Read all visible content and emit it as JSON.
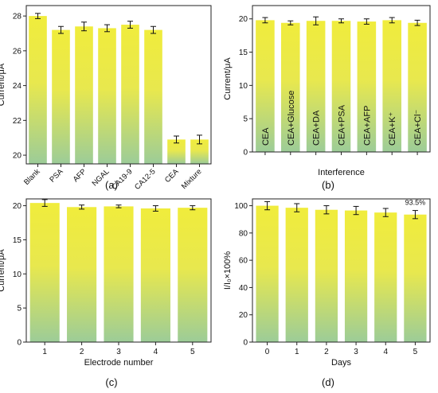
{
  "colors": {
    "bar_top": "#f0ec3c",
    "bar_bottom": "#9ccc98",
    "axis": "#222222",
    "error": "#111111"
  },
  "panel_labels": [
    "(a)",
    "(b)",
    "(c)",
    "(d)"
  ],
  "chart_data": [
    {
      "panel": "(a)",
      "type": "bar",
      "xlabel": "",
      "ylabel": "Current/μA",
      "ylim": [
        19.5,
        28.6
      ],
      "yticks": [
        20,
        22,
        24,
        26,
        28
      ],
      "categories": [
        "Blank",
        "PSA",
        "AFP",
        "NGAL",
        "CA19-9",
        "CA12-5",
        "CEA",
        "Mixture"
      ],
      "values": [
        28.0,
        27.2,
        27.4,
        27.3,
        27.5,
        27.2,
        20.9,
        20.9
      ],
      "errors": [
        0.15,
        0.2,
        0.25,
        0.2,
        0.2,
        0.2,
        0.2,
        0.25
      ],
      "tick_rotation": -45
    },
    {
      "panel": "(b)",
      "type": "bar",
      "xlabel": "Interference",
      "ylabel": "Current/μA",
      "ylim": [
        0,
        22
      ],
      "yticks": [
        0,
        5,
        10,
        15,
        20
      ],
      "categories": [
        "CEA",
        "CEA+Glucose",
        "CEA+DA",
        "CEA+PSA",
        "CEA+AFP",
        "CEA+K⁺",
        "CEA+Cl⁻"
      ],
      "values": [
        19.8,
        19.4,
        19.7,
        19.7,
        19.6,
        19.8,
        19.4
      ],
      "errors": [
        0.4,
        0.3,
        0.6,
        0.3,
        0.4,
        0.4,
        0.4
      ],
      "labels_inside_bars": true
    },
    {
      "panel": "(c)",
      "type": "bar",
      "xlabel": "Electrode number",
      "ylabel": "Current/μA",
      "ylim": [
        0,
        21
      ],
      "yticks": [
        0,
        5,
        10,
        15,
        20
      ],
      "categories": [
        "1",
        "2",
        "3",
        "4",
        "5"
      ],
      "values": [
        20.4,
        19.8,
        19.9,
        19.6,
        19.7
      ],
      "errors": [
        0.5,
        0.3,
        0.2,
        0.4,
        0.3
      ]
    },
    {
      "panel": "(d)",
      "type": "bar",
      "xlabel": "Days",
      "ylabel": "I/I₀×100%",
      "ylim": [
        0,
        105
      ],
      "yticks": [
        0,
        20,
        40,
        60,
        80,
        100
      ],
      "categories": [
        "0",
        "1",
        "2",
        "3",
        "4",
        "5"
      ],
      "values": [
        100,
        98.5,
        97,
        96.5,
        95,
        93.5
      ],
      "errors": [
        3,
        3,
        3,
        3,
        3,
        3
      ],
      "annotation": {
        "text": "93.5%",
        "category": "5"
      }
    }
  ]
}
